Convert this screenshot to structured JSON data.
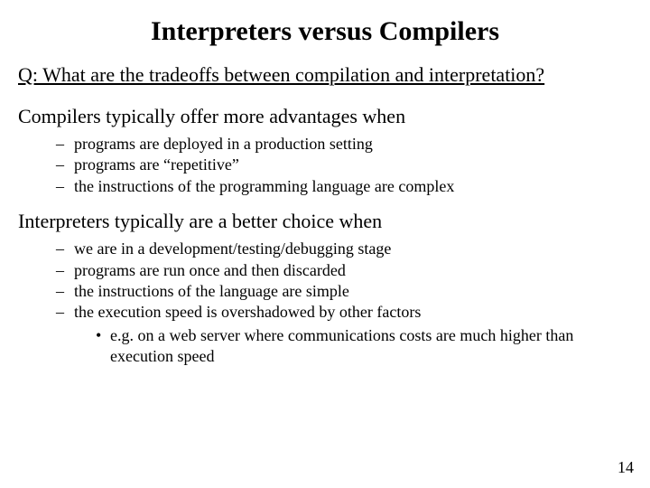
{
  "title": "Interpreters versus Compilers",
  "question": "Q: What are the tradeoffs between compilation and interpretation?",
  "compilers_lead": "Compilers typically offer more advantages when",
  "compilers_items": {
    "0": "programs are deployed in a production setting",
    "1": "programs are “repetitive”",
    "2": "the instructions of the programming language are complex"
  },
  "interpreters_lead": "Interpreters typically are a better choice when",
  "interpreters_items": {
    "0": "we are in a development/testing/debugging stage",
    "1": "programs are run once and then discarded",
    "2": "the instructions of the language are simple",
    "3": "the execution speed is overshadowed by other factors",
    "3_sub": "e.g. on a web server where communications costs are much higher than execution speed"
  },
  "page_number": "14",
  "colors": {
    "background": "#ffffff",
    "text": "#000000"
  },
  "fonts": {
    "family": "Times New Roman",
    "title_size_pt": 30,
    "body_size_pt": 22,
    "bullet_size_pt": 18
  }
}
